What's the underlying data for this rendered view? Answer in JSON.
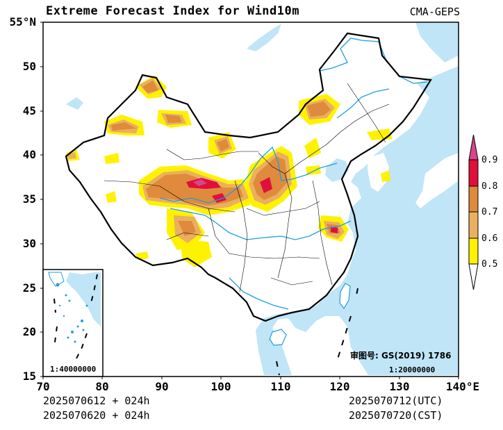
{
  "title": "Extreme Forecast Index for Wind10m",
  "source": "CMA-GEPS",
  "lat_labels": [
    "55°N",
    "50",
    "45",
    "40",
    "35",
    "30",
    "25",
    "20",
    "15"
  ],
  "lon_labels": [
    "70",
    "80",
    "90",
    "100",
    "110",
    "120",
    "130",
    "140°E"
  ],
  "footer": {
    "init_utc": "2025070612 + 024h",
    "init_cst": "2025070620 + 024h",
    "valid_utc": "2025070712(UTC)",
    "valid_cst": "2025070720(CST)"
  },
  "legend": {
    "labels": [
      "0.9",
      "0.8",
      "0.7",
      "0.6",
      "0.5"
    ],
    "colors": [
      "#d9448a",
      "#e0103c",
      "#df8a3c",
      "#eab060",
      "#fff200"
    ]
  },
  "map_review": "审图号: GS(2019) 1786",
  "scale_main": "1:20000000",
  "scale_inset": "1:40000000",
  "colors": {
    "ocean": "#bfe5f7",
    "river": "#1e9ee0",
    "border": "#000000"
  }
}
